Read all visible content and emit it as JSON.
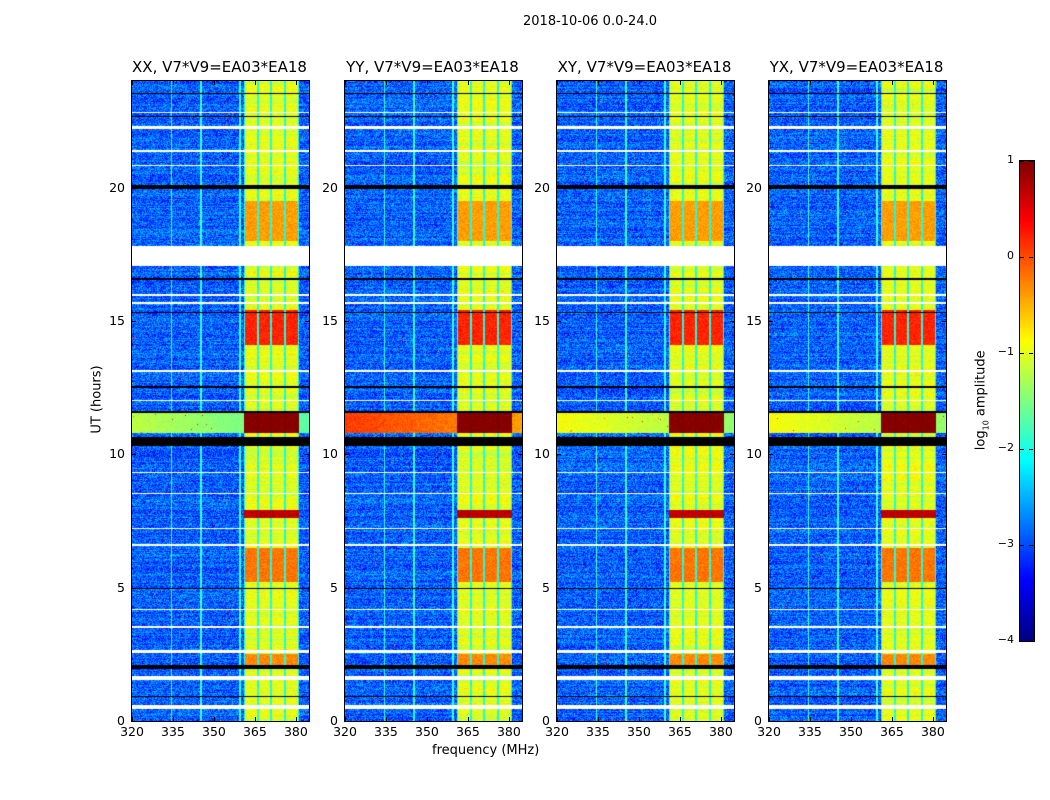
{
  "suptitle": "2018-10-06 0.0-24.0",
  "chart_data": {
    "type": "heatmap",
    "xlabel": "frequency (MHz)",
    "ylabel": "UT (hours)",
    "xlim": [
      320,
      384.8
    ],
    "ylim": [
      0,
      24
    ],
    "xticks": [
      320,
      335,
      350,
      365,
      380
    ],
    "xtick_labels": [
      "320",
      "335",
      "350",
      "365",
      "380"
    ],
    "yticks": [
      0,
      5,
      10,
      15,
      20
    ],
    "ytick_labels": [
      "0",
      "5",
      "10",
      "15",
      "20"
    ],
    "colorbar": {
      "label_main": "log",
      "label_sub": "10",
      "label_rest": " amplitude",
      "colormap": "jet",
      "range": [
        -4,
        1
      ],
      "ticks": [
        1,
        0,
        -1,
        -2,
        -3,
        -4
      ],
      "tick_labels": [
        "1",
        "0",
        "−1",
        "−2",
        "−3",
        "−4"
      ]
    },
    "background_level": -2.9,
    "subbands_mhz": [
      [
        361,
        366
      ],
      [
        366,
        371
      ],
      [
        371,
        376
      ],
      [
        376,
        381
      ]
    ],
    "subband_level": -1.0,
    "rfi_channels_mhz": [
      334.5,
      345.2,
      359.5
    ],
    "flagged_hours": [
      [
        0.45,
        0.6
      ],
      [
        1.55,
        1.7
      ],
      [
        2.55,
        2.65
      ],
      [
        3.5,
        3.55
      ],
      [
        4.15,
        4.2
      ],
      [
        6.55,
        6.62
      ],
      [
        7.2,
        7.25
      ],
      [
        8.5,
        8.55
      ],
      [
        9.3,
        9.35
      ],
      [
        12.0,
        12.05
      ],
      [
        13.1,
        13.15
      ],
      [
        15.65,
        15.72
      ],
      [
        15.95,
        16.0
      ],
      [
        17.05,
        17.8
      ],
      [
        20.8,
        20.85
      ],
      [
        21.35,
        21.4
      ],
      [
        22.2,
        22.3
      ],
      [
        22.8,
        22.85
      ]
    ],
    "black_hours": [
      [
        0.9,
        0.95
      ],
      [
        1.95,
        2.1
      ],
      [
        4.95,
        5.0
      ],
      [
        10.3,
        10.65
      ],
      [
        11.55,
        11.62
      ],
      [
        12.5,
        12.55
      ],
      [
        15.3,
        15.35
      ],
      [
        16.55,
        16.6
      ],
      [
        19.95,
        20.1
      ],
      [
        22.65,
        22.7
      ],
      [
        23.5,
        23.55
      ]
    ],
    "hot_intervals": [
      {
        "hours": [
          10.8,
          11.55
        ],
        "level": 1.0
      },
      {
        "hours": [
          7.6,
          7.9
        ],
        "level": 0.7
      },
      {
        "hours": [
          14.1,
          15.4
        ],
        "level": 0.2
      },
      {
        "hours": [
          5.2,
          6.5
        ],
        "level": -0.2
      },
      {
        "hours": [
          2.0,
          2.5
        ],
        "level": -0.3
      },
      {
        "hours": [
          18.0,
          19.5
        ],
        "level": -0.4
      }
    ],
    "panels": [
      {
        "title": "XX, V7*V9=EA03*EA18",
        "broadband_hot_level": -1.2
      },
      {
        "title": "YY, V7*V9=EA03*EA18",
        "broadband_hot_level": 0.1
      },
      {
        "title": "XY, V7*V9=EA03*EA18",
        "broadband_hot_level": -0.9
      },
      {
        "title": "YX, V7*V9=EA03*EA18",
        "broadband_hot_level": -0.9
      }
    ]
  }
}
